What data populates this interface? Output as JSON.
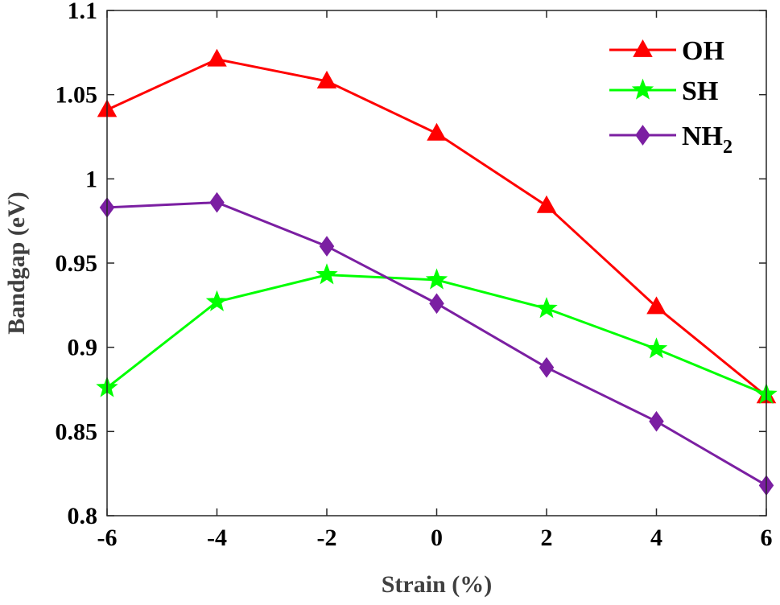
{
  "chart_data": {
    "type": "line",
    "title": "",
    "xlabel": "Strain (%)",
    "ylabel": "Bandgap (eV)",
    "x": [
      -6,
      -4,
      -2,
      0,
      2,
      4,
      6
    ],
    "xlim": [
      -6,
      6
    ],
    "ylim": [
      0.8,
      1.1
    ],
    "xticks": [
      "-6",
      "-4",
      "-2",
      "0",
      "2",
      "4",
      "6"
    ],
    "yticks": [
      "0.8",
      "0.85",
      "0.9",
      "0.95",
      "1",
      "1.05",
      "1.1"
    ],
    "grid": false,
    "legend_position": "top-right",
    "series": [
      {
        "name": "OH",
        "name_sub": "",
        "color": "#ff0000",
        "marker": "triangle",
        "values": [
          1.041,
          1.071,
          1.058,
          1.027,
          0.984,
          0.924,
          0.871
        ]
      },
      {
        "name": "SH",
        "name_sub": "",
        "color": "#00ff00",
        "marker": "star",
        "values": [
          0.876,
          0.927,
          0.943,
          0.94,
          0.923,
          0.899,
          0.872
        ]
      },
      {
        "name": "NH",
        "name_sub": "2",
        "color": "#7b1fa2",
        "marker": "diamond",
        "values": [
          0.983,
          0.986,
          0.96,
          0.926,
          0.888,
          0.856,
          0.818
        ]
      }
    ]
  }
}
